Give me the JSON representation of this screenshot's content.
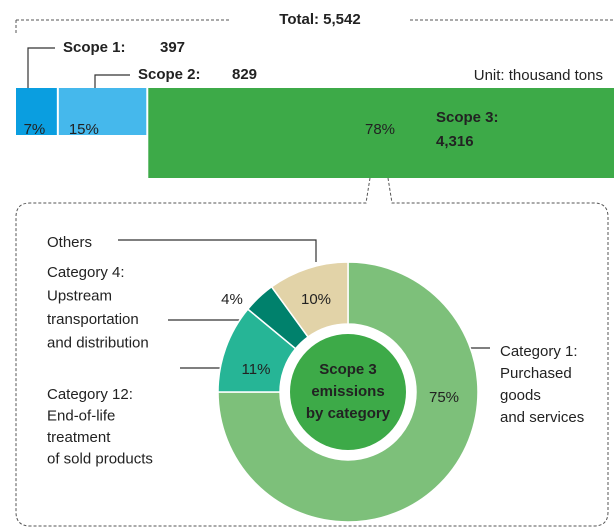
{
  "chart_data": [
    {
      "type": "stacked-bar",
      "title": "Total:  5,542",
      "unit": "Unit: thousand tons",
      "series": [
        {
          "name": "Scope 1:",
          "color": "#0a9ee0",
          "values": [
            397
          ],
          "share": 7,
          "share_label": "7%"
        },
        {
          "name": "Scope 2:",
          "color": "#45b8ec",
          "values": [
            829
          ],
          "share": 15,
          "share_label": "15%"
        },
        {
          "name": "Scope 3:",
          "color": "#3daa48",
          "values": [
            4316
          ],
          "value_labels": [
            "4,316"
          ],
          "share": 78,
          "share_label": "78%"
        }
      ]
    },
    {
      "type": "pie",
      "center_label": [
        "Scope 3",
        "emissions",
        "by category"
      ],
      "categories": [
        [
          "Category 1:",
          "Purchased",
          "goods",
          "and services"
        ],
        [
          "Category 12:",
          "End-of-life",
          "treatment",
          "of sold products"
        ],
        [
          "Category 4:",
          "Upstream",
          "transportation",
          "and distribution"
        ],
        [
          "Others"
        ]
      ],
      "values": [
        75,
        11,
        4,
        10
      ],
      "value_labels": [
        "75%",
        "11%",
        "4%",
        "10%"
      ],
      "colors": [
        "#7dc07a",
        "#26b596",
        "#00816c",
        "#e2d3a8"
      ]
    }
  ]
}
